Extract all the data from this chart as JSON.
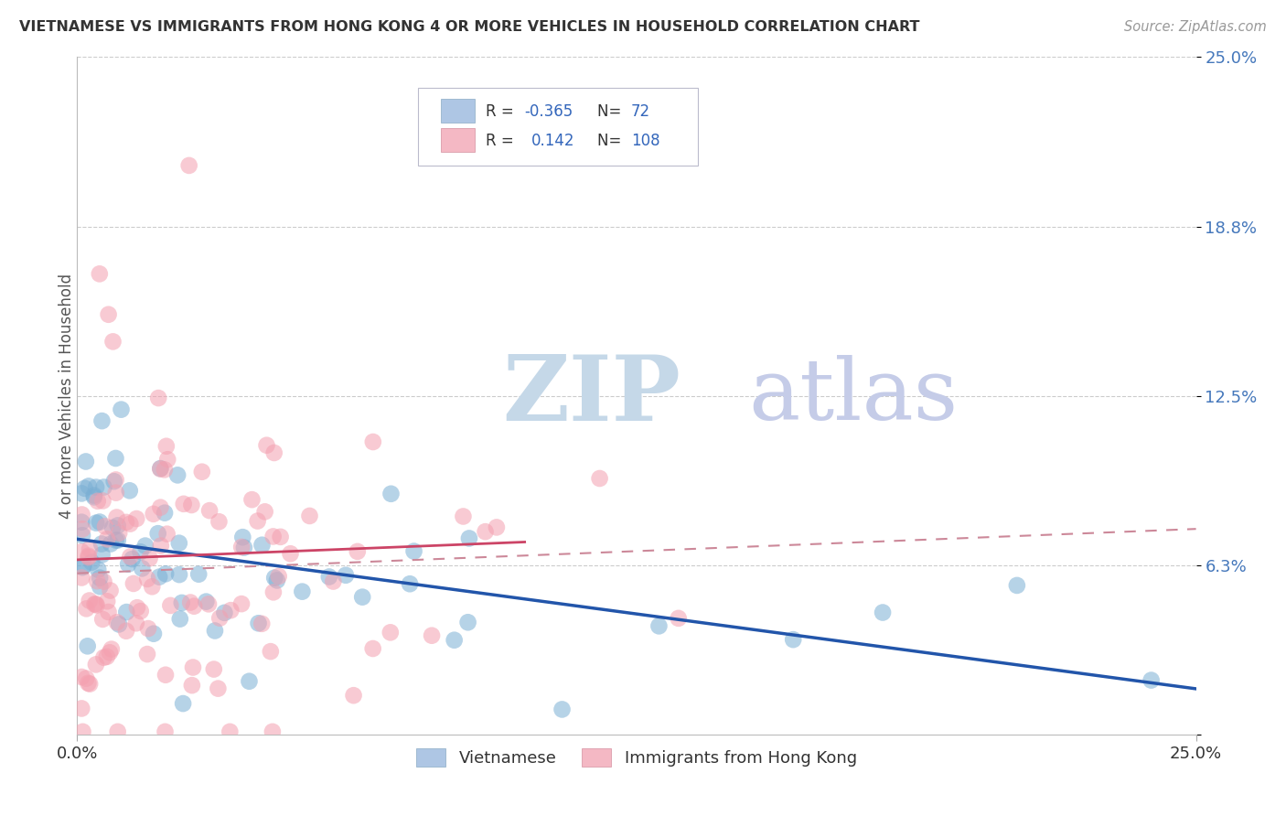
{
  "title": "VIETNAMESE VS IMMIGRANTS FROM HONG KONG 4 OR MORE VEHICLES IN HOUSEHOLD CORRELATION CHART",
  "source": "Source: ZipAtlas.com",
  "ylabel": "4 or more Vehicles in Household",
  "xlim": [
    0.0,
    0.25
  ],
  "ylim": [
    0.0,
    0.25
  ],
  "ytick_vals": [
    0.0,
    0.0625,
    0.125,
    0.1875,
    0.25
  ],
  "ytick_labels": [
    "",
    "6.3%",
    "12.5%",
    "18.8%",
    "25.0%"
  ],
  "xtick_vals": [
    0.0,
    0.25
  ],
  "xtick_labels": [
    "0.0%",
    "25.0%"
  ],
  "blue_R": -0.365,
  "blue_N": 72,
  "pink_R": 0.142,
  "pink_N": 108,
  "blue_scatter_color": "#7BAFD4",
  "pink_scatter_color": "#F4A0B0",
  "blue_line_color": "#2255AA",
  "pink_solid_color": "#CC4466",
  "pink_dash_color": "#CC8899",
  "background_color": "#FFFFFF",
  "grid_color": "#CCCCCC",
  "title_color": "#333333",
  "source_color": "#999999",
  "tick_color": "#4477BB",
  "ylabel_color": "#555555",
  "legend_blue_label": "Vietnamese",
  "legend_pink_label": "Immigrants from Hong Kong",
  "watermark_zip_color": "#C5D8E8",
  "watermark_atlas_color": "#C5CCE8"
}
